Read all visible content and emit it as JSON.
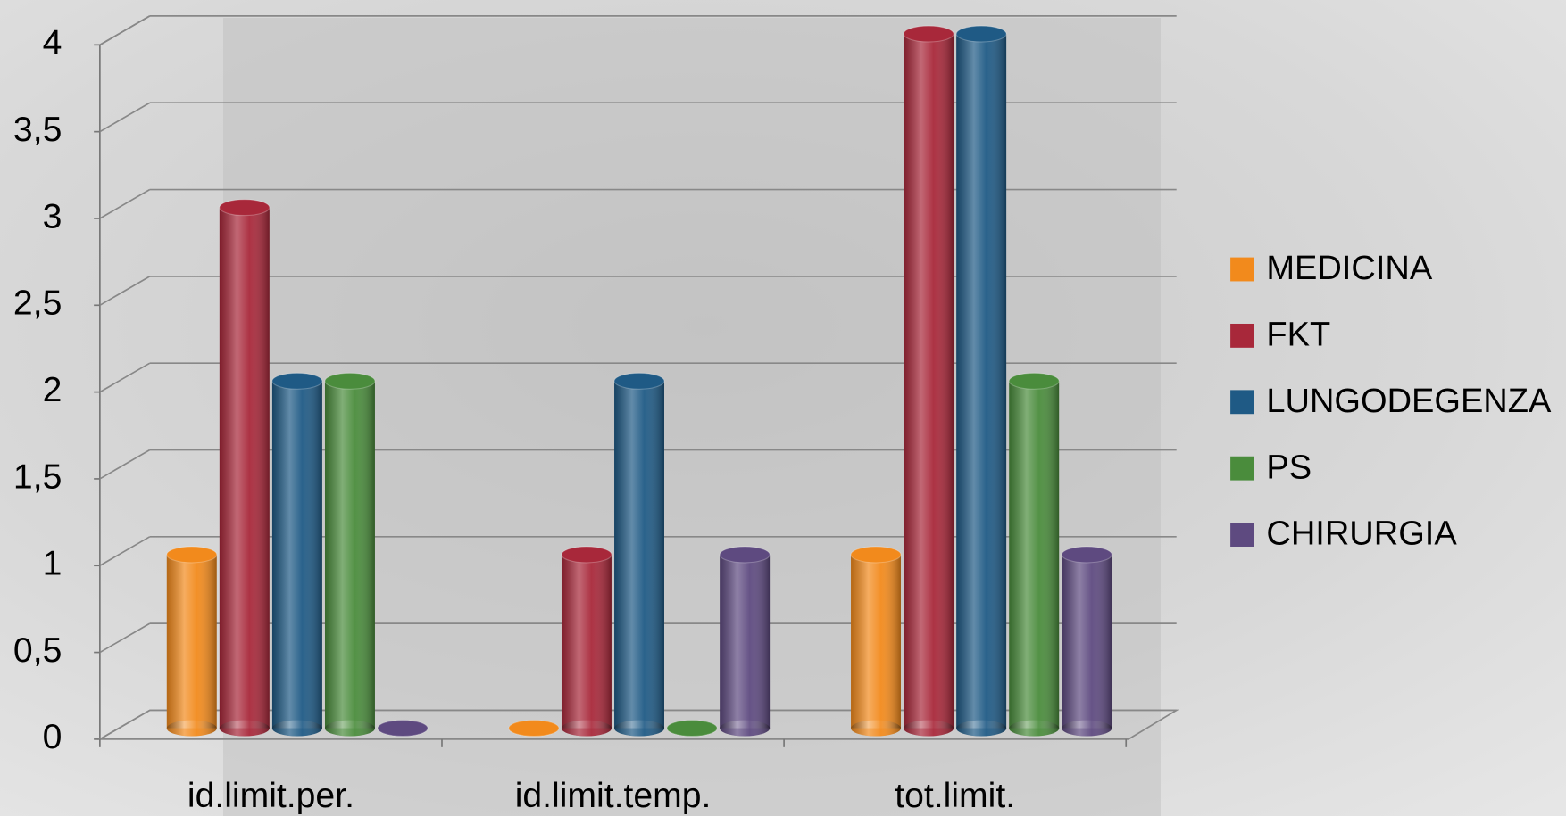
{
  "chart_data": {
    "type": "bar",
    "categories": [
      "id.limit.per.",
      "id.limit.temp.",
      "tot.limit."
    ],
    "series": [
      {
        "name": "MEDICINA",
        "color": "#f28a1c",
        "values": [
          1,
          0,
          1
        ]
      },
      {
        "name": "FKT",
        "color": "#a8283a",
        "values": [
          3,
          1,
          4
        ]
      },
      {
        "name": "LUNGODEGENZA",
        "color": "#1f5a85",
        "values": [
          2,
          2,
          4
        ]
      },
      {
        "name": "PS",
        "color": "#4a8c3c",
        "values": [
          2,
          0,
          2
        ]
      },
      {
        "name": "CHIRURGIA",
        "color": "#5e4a80",
        "values": [
          0,
          1,
          1
        ]
      }
    ],
    "ylim": [
      0,
      4
    ],
    "yticks": [
      0,
      {
        "value": 0.5,
        "label": "0,5"
      },
      1,
      {
        "value": 1.5,
        "label": "1,5"
      },
      2,
      {
        "value": 2.5,
        "label": "2,5"
      },
      3,
      {
        "value": 3.5,
        "label": "3,5"
      },
      4
    ],
    "grid": true,
    "legend": "right"
  }
}
